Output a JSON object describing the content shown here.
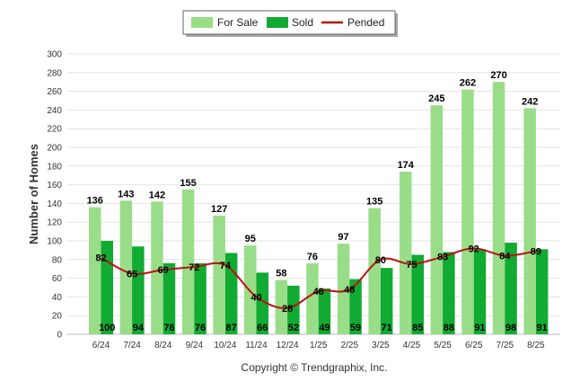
{
  "chart_data": {
    "type": "bar",
    "title": "",
    "xlabel": "",
    "ylabel": "Number of Homes",
    "ylim": [
      0,
      300
    ],
    "yticks": [
      0,
      20,
      40,
      60,
      80,
      100,
      120,
      140,
      160,
      180,
      200,
      220,
      240,
      260,
      280,
      300
    ],
    "grid": true,
    "legend_position": "top-center",
    "categories": [
      "6/24",
      "7/24",
      "8/24",
      "9/24",
      "10/24",
      "11/24",
      "12/24",
      "1/25",
      "2/25",
      "3/25",
      "4/25",
      "5/25",
      "6/25",
      "7/25",
      "8/25"
    ],
    "series": [
      {
        "name": "For Sale",
        "kind": "bar",
        "color": "#99dd88",
        "values": [
          136,
          143,
          142,
          155,
          127,
          95,
          58,
          76,
          97,
          135,
          174,
          245,
          262,
          270,
          242
        ]
      },
      {
        "name": "Sold",
        "kind": "bar",
        "color": "#11aa33",
        "values": [
          100,
          94,
          76,
          76,
          87,
          66,
          52,
          49,
          59,
          71,
          85,
          88,
          91,
          98,
          91
        ]
      },
      {
        "name": "Pended",
        "kind": "line",
        "color": "#bb1111",
        "values": [
          82,
          65,
          69,
          72,
          74,
          40,
          28,
          46,
          48,
          80,
          75,
          83,
          92,
          84,
          89
        ]
      }
    ]
  },
  "copyright": "Copyright © Trendgraphix, Inc."
}
